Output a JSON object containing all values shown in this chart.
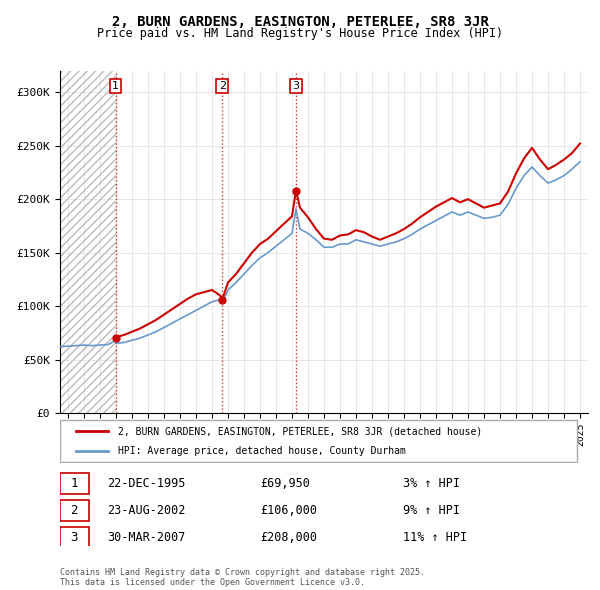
{
  "title": "2, BURN GARDENS, EASINGTON, PETERLEE, SR8 3JR",
  "subtitle": "Price paid vs. HM Land Registry's House Price Index (HPI)",
  "property_label": "2, BURN GARDENS, EASINGTON, PETERLEE, SR8 3JR (detached house)",
  "hpi_label": "HPI: Average price, detached house, County Durham",
  "footer": "Contains HM Land Registry data © Crown copyright and database right 2025.\nThis data is licensed under the Open Government Licence v3.0.",
  "sale_markers": [
    {
      "num": 1,
      "date": "22-DEC-1995",
      "price": 69950,
      "pct": "3%",
      "x_year": 1995.97
    },
    {
      "num": 2,
      "date": "23-AUG-2002",
      "price": 106000,
      "pct": "9%",
      "x_year": 2002.64
    },
    {
      "num": 3,
      "date": "30-MAR-2007",
      "price": 208000,
      "pct": "11%",
      "x_year": 2007.25
    }
  ],
  "property_color": "#cc0000",
  "hpi_color": "#6699cc",
  "hatch_color": "#cccccc",
  "ylim": [
    0,
    320000
  ],
  "xlim_start": 1992.5,
  "xlim_end": 2025.5,
  "yticks": [
    0,
    50000,
    100000,
    150000,
    200000,
    250000,
    300000
  ],
  "ytick_labels": [
    "£0",
    "£50K",
    "£100K",
    "£150K",
    "£200K",
    "£250K",
    "£300K"
  ],
  "xticks": [
    1993,
    1994,
    1995,
    1996,
    1997,
    1998,
    1999,
    2000,
    2001,
    2002,
    2003,
    2004,
    2005,
    2006,
    2007,
    2008,
    2009,
    2010,
    2011,
    2012,
    2013,
    2014,
    2015,
    2016,
    2017,
    2018,
    2019,
    2020,
    2021,
    2022,
    2023,
    2024,
    2025
  ],
  "hpi_data_x": [
    1992.5,
    1993.0,
    1993.5,
    1994.0,
    1994.5,
    1995.0,
    1995.5,
    1995.97,
    1996.0,
    1996.5,
    1997.0,
    1997.5,
    1998.0,
    1998.5,
    1999.0,
    1999.5,
    2000.0,
    2000.5,
    2001.0,
    2001.5,
    2002.0,
    2002.5,
    2002.64,
    2003.0,
    2003.5,
    2004.0,
    2004.5,
    2005.0,
    2005.5,
    2006.0,
    2006.5,
    2007.0,
    2007.25,
    2007.5,
    2008.0,
    2008.5,
    2009.0,
    2009.5,
    2010.0,
    2010.5,
    2011.0,
    2011.5,
    2012.0,
    2012.5,
    2013.0,
    2013.5,
    2014.0,
    2014.5,
    2015.0,
    2015.5,
    2016.0,
    2016.5,
    2017.0,
    2017.5,
    2018.0,
    2018.5,
    2019.0,
    2019.5,
    2020.0,
    2020.5,
    2021.0,
    2021.5,
    2022.0,
    2022.5,
    2023.0,
    2023.5,
    2024.0,
    2024.5,
    2025.0
  ],
  "hpi_data_y": [
    62000,
    62500,
    63000,
    63500,
    63000,
    63500,
    64000,
    67800,
    65000,
    66000,
    68000,
    70000,
    73000,
    76000,
    80000,
    84000,
    88000,
    92000,
    96000,
    100000,
    104000,
    106000,
    102900,
    115000,
    122000,
    130000,
    138000,
    145000,
    150000,
    156000,
    162000,
    168000,
    190800,
    172000,
    168000,
    162000,
    155000,
    155000,
    158000,
    158000,
    162000,
    160000,
    158000,
    156000,
    158000,
    160000,
    163000,
    167000,
    172000,
    176000,
    180000,
    184000,
    188000,
    185000,
    188000,
    185000,
    182000,
    183000,
    185000,
    195000,
    210000,
    222000,
    230000,
    222000,
    215000,
    218000,
    222000,
    228000,
    235000
  ],
  "property_data_x": [
    1992.5,
    1993.0,
    1993.5,
    1994.0,
    1994.5,
    1995.0,
    1995.5,
    1995.97,
    1996.0,
    1996.5,
    1997.0,
    1997.5,
    1998.0,
    1998.5,
    1999.0,
    1999.5,
    2000.0,
    2000.5,
    2001.0,
    2001.5,
    2002.0,
    2002.5,
    2002.64,
    2003.0,
    2003.5,
    2004.0,
    2004.5,
    2005.0,
    2005.5,
    2006.0,
    2006.5,
    2007.0,
    2007.25,
    2007.5,
    2008.0,
    2008.5,
    2009.0,
    2009.5,
    2010.0,
    2010.5,
    2011.0,
    2011.5,
    2012.0,
    2012.5,
    2013.0,
    2013.5,
    2014.0,
    2014.5,
    2015.0,
    2015.5,
    2016.0,
    2016.5,
    2017.0,
    2017.5,
    2018.0,
    2018.5,
    2019.0,
    2019.5,
    2020.0,
    2020.5,
    2021.0,
    2021.5,
    2022.0,
    2022.5,
    2023.0,
    2023.5,
    2024.0,
    2024.5,
    2025.0
  ],
  "property_data_y": [
    null,
    null,
    null,
    null,
    null,
    null,
    null,
    69950,
    71000,
    73000,
    76000,
    79000,
    83000,
    87000,
    92000,
    97000,
    102000,
    107000,
    111000,
    113000,
    115000,
    110000,
    106000,
    122000,
    130000,
    140000,
    150000,
    158000,
    163000,
    170000,
    177000,
    184000,
    208000,
    192000,
    183000,
    172000,
    163000,
    162000,
    166000,
    167000,
    171000,
    169000,
    165000,
    162000,
    165000,
    168000,
    172000,
    177000,
    183000,
    188000,
    193000,
    197000,
    201000,
    197000,
    200000,
    196000,
    192000,
    194000,
    196000,
    207000,
    224000,
    238000,
    248000,
    237000,
    228000,
    232000,
    237000,
    243000,
    252000
  ]
}
